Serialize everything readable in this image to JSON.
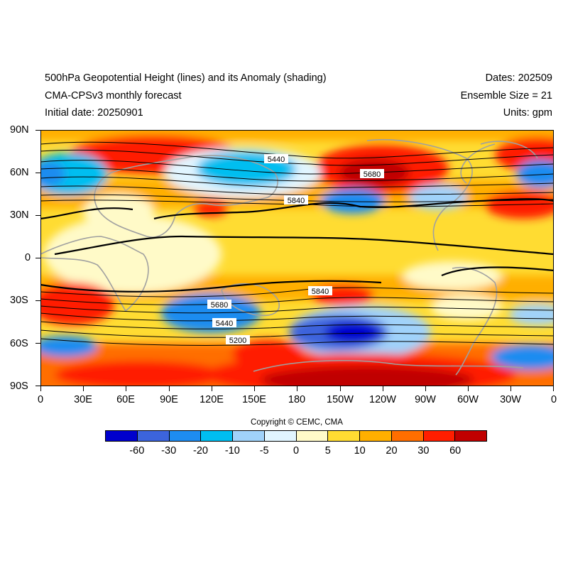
{
  "header": {
    "title_line1": "500hPa Geopotential Height (lines) and its Anomaly (shading)",
    "title_line2": "CMA-CPSv3 monthly forecast",
    "title_line3": "Initial date: 20250901",
    "dates": "Dates: 202509",
    "ensemble": "Ensemble Size = 21",
    "units": "Units: gpm"
  },
  "map": {
    "lat_labels": [
      "90N",
      "60N",
      "30N",
      "0",
      "30S",
      "60S",
      "90S"
    ],
    "lon_labels": [
      "0",
      "30E",
      "60E",
      "90E",
      "120E",
      "150E",
      "180",
      "150W",
      "120W",
      "90W",
      "60W",
      "30W",
      "0"
    ],
    "contour_labels": [
      "5440",
      "5680",
      "5840",
      "5840",
      "5680",
      "5440",
      "5200"
    ]
  },
  "copyright": "Copyright © CEMC, CMA",
  "colorbar": {
    "colors": [
      "#0000cd",
      "#3c64dc",
      "#1e8cf0",
      "#00bef0",
      "#a0d2fa",
      "#e1f5ff",
      "#fffac8",
      "#ffdc32",
      "#ffaf00",
      "#ff6e00",
      "#ff1e00",
      "#c00000"
    ],
    "labels": [
      "-60",
      "-30",
      "-20",
      "-10",
      "-5",
      "0",
      "5",
      "10",
      "20",
      "30",
      "60"
    ]
  }
}
